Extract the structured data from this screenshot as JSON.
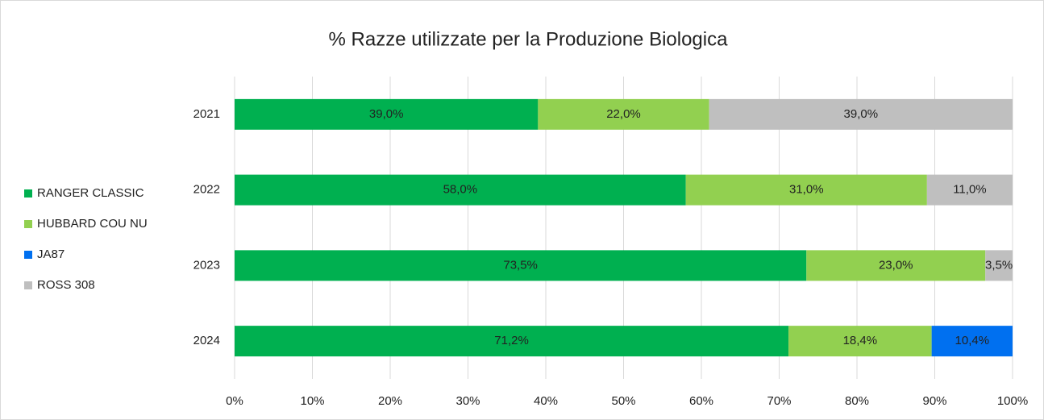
{
  "chart_data": {
    "type": "stacked-bar-horizontal",
    "title": "% Razze utilizzate per la Produzione Biologica",
    "categories": [
      "2021",
      "2022",
      "2023",
      "2024"
    ],
    "series": [
      {
        "name": "RANGER CLASSIC",
        "color": "#00b050",
        "values": [
          39.0,
          58.0,
          73.5,
          71.2
        ],
        "value_labels": [
          "39,0%",
          "58,0%",
          "73,5%",
          "71,2%"
        ]
      },
      {
        "name": "HUBBARD COU NU",
        "color": "#92d050",
        "values": [
          22.0,
          31.0,
          23.0,
          18.4
        ],
        "value_labels": [
          "22,0%",
          "31,0%",
          "23,0%",
          "18,4%"
        ]
      },
      {
        "name": "JA87",
        "color": "#0070f0",
        "values": [
          null,
          null,
          null,
          10.4
        ],
        "value_labels": [
          null,
          null,
          null,
          "10,4%"
        ]
      },
      {
        "name": "ROSS 308",
        "color": "#bfbfbf",
        "values": [
          39.0,
          11.0,
          3.5,
          null
        ],
        "value_labels": [
          "39,0%",
          "11,0%",
          "3,5%",
          null
        ]
      }
    ],
    "xlim": [
      0,
      100
    ],
    "xticks": [
      {
        "value": 0,
        "label": "0%"
      },
      {
        "value": 10,
        "label": "10%"
      },
      {
        "value": 20,
        "label": "20%"
      },
      {
        "value": 30,
        "label": "30%"
      },
      {
        "value": 40,
        "label": "40%"
      },
      {
        "value": 50,
        "label": "50%"
      },
      {
        "value": 60,
        "label": "60%"
      },
      {
        "value": 70,
        "label": "70%"
      },
      {
        "value": 80,
        "label": "80%"
      },
      {
        "value": 90,
        "label": "90%"
      },
      {
        "value": 100,
        "label": "100%"
      }
    ],
    "grid": true,
    "legend": "left"
  }
}
